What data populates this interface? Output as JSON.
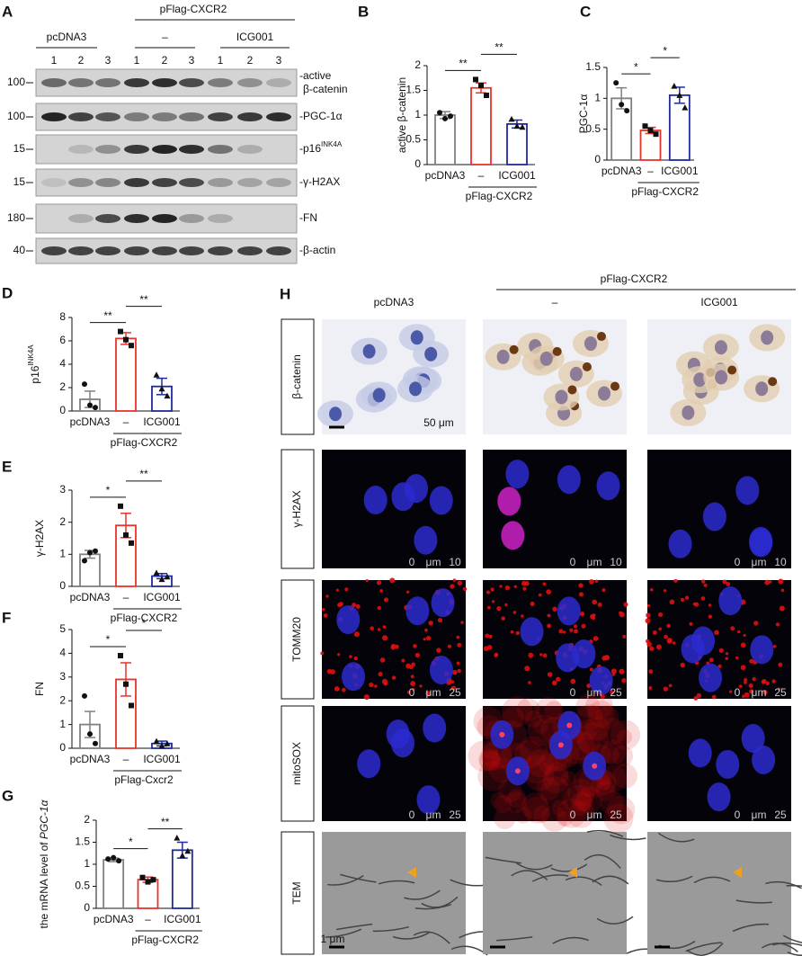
{
  "figure_a": {
    "label": "A",
    "group_header": "pFlag-CXCR2",
    "groups": [
      "pcDNA3",
      "–",
      "ICG001"
    ],
    "lanes": [
      1,
      2,
      3,
      1,
      2,
      3,
      1,
      2,
      3
    ],
    "rows": [
      {
        "marker": 100,
        "label": "-active",
        "label2": "β-catenin"
      },
      {
        "marker": 100,
        "label": "-PGC-1α"
      },
      {
        "marker": 15,
        "label": "-p16",
        "sup": "INK4A"
      },
      {
        "marker": 15,
        "label": "-γ-H2AX"
      },
      {
        "marker": 180,
        "label": "-FN"
      },
      {
        "marker": 40,
        "label": "-β-actin"
      }
    ]
  },
  "chart_data": [
    {
      "type": "bar",
      "panel": "B",
      "ylabel": "active β-catenin",
      "categories": [
        "pcDNA3",
        "–",
        "ICG001"
      ],
      "group_label": "pFlag-CXCR2",
      "colors": [
        "#808080",
        "#e8332a",
        "#1f2a9c"
      ],
      "values": [
        1,
        1.55,
        0.82
      ],
      "errors": [
        0.07,
        0.1,
        0.08
      ],
      "points": [
        [
          1.05,
          0.93,
          0.98
        ],
        [
          1.72,
          1.6,
          1.4
        ],
        [
          0.92,
          0.78,
          0.76
        ]
      ],
      "ylim": [
        0,
        2
      ],
      "yticks": [
        0,
        0.5,
        1,
        1.5,
        2
      ],
      "significance": [
        {
          "from": 0,
          "to": 1,
          "label": "**"
        },
        {
          "from": 1,
          "to": 2,
          "label": "**"
        }
      ]
    },
    {
      "type": "bar",
      "panel": "C",
      "ylabel": "PGC-1α",
      "categories": [
        "pcDNA3",
        "–",
        "ICG001"
      ],
      "group_label": "pFlag-CXCR2",
      "colors": [
        "#808080",
        "#e8332a",
        "#1f2a9c"
      ],
      "values": [
        1,
        0.48,
        1.05
      ],
      "errors": [
        0.17,
        0.05,
        0.13
      ],
      "points": [
        [
          1.25,
          0.9,
          0.8
        ],
        [
          0.55,
          0.48,
          0.42
        ],
        [
          1.2,
          1.05,
          0.85
        ]
      ],
      "ylim": [
        0,
        1.5
      ],
      "yticks": [
        0,
        0.5,
        1,
        1.5
      ],
      "significance": [
        {
          "from": 0,
          "to": 1,
          "label": "*"
        },
        {
          "from": 1,
          "to": 2,
          "label": "*"
        }
      ]
    },
    {
      "type": "bar",
      "panel": "D",
      "ylabel": "p16",
      "ylabel_sup": "INK4A",
      "categories": [
        "pcDNA3",
        "–",
        "ICG001"
      ],
      "group_label": "pFlag-CXCR2",
      "colors": [
        "#808080",
        "#e8332a",
        "#1f2a9c"
      ],
      "values": [
        1,
        6.2,
        2.1
      ],
      "errors": [
        0.7,
        0.5,
        0.7
      ],
      "points": [
        [
          2.3,
          0.5,
          0.3
        ],
        [
          6.8,
          6.1,
          5.6
        ],
        [
          3.1,
          1.9,
          1.3
        ]
      ],
      "ylim": [
        0,
        8
      ],
      "yticks": [
        0,
        2,
        4,
        6,
        8
      ],
      "significance": [
        {
          "from": 0,
          "to": 1,
          "label": "**"
        },
        {
          "from": 1,
          "to": 2,
          "label": "**"
        }
      ]
    },
    {
      "type": "bar",
      "panel": "E",
      "ylabel": "γ-H2AX",
      "categories": [
        "pcDNA3",
        "–",
        "ICG001"
      ],
      "group_label": "pFlag-CXCR2",
      "colors": [
        "#808080",
        "#e8332a",
        "#1f2a9c"
      ],
      "values": [
        1,
        1.9,
        0.32
      ],
      "errors": [
        0.12,
        0.38,
        0.08
      ],
      "points": [
        [
          0.8,
          1.05,
          1.1
        ],
        [
          2.5,
          1.6,
          1.35
        ],
        [
          0.42,
          0.22,
          0.3
        ]
      ],
      "ylim": [
        0,
        3
      ],
      "yticks": [
        0,
        1,
        2,
        3
      ],
      "significance": [
        {
          "from": 0,
          "to": 1,
          "label": "*"
        },
        {
          "from": 1,
          "to": 2,
          "label": "**"
        }
      ]
    },
    {
      "type": "bar",
      "panel": "F",
      "ylabel": "FN",
      "categories": [
        "pcDNA3",
        "–",
        "ICG001"
      ],
      "group_label": "pFlag-Cxcr2",
      "colors": [
        "#808080",
        "#e8332a",
        "#1f2a9c"
      ],
      "values": [
        1,
        2.9,
        0.2
      ],
      "errors": [
        0.55,
        0.7,
        0.1
      ],
      "points": [
        [
          2.2,
          0.6,
          0.2
        ],
        [
          3.9,
          2.7,
          1.8
        ],
        [
          0.3,
          0.1,
          0.2
        ]
      ],
      "ylim": [
        0,
        5
      ],
      "yticks": [
        0,
        1,
        2,
        3,
        4,
        5
      ],
      "significance": [
        {
          "from": 0,
          "to": 1,
          "label": "*"
        },
        {
          "from": 1,
          "to": 2,
          "label": "*"
        }
      ]
    },
    {
      "type": "bar",
      "panel": "G",
      "ylabel": "the mRNA level of ",
      "ylabel_italic": "PGC-1α",
      "categories": [
        "pcDNA3",
        "–",
        "ICG001"
      ],
      "group_label": "pFlag-CXCR2",
      "colors": [
        "#808080",
        "#e8332a",
        "#1f2a9c"
      ],
      "values": [
        1.1,
        0.65,
        1.32
      ],
      "errors": [
        0.04,
        0.06,
        0.18
      ],
      "points": [
        [
          1.12,
          1.15,
          1.08
        ],
        [
          0.7,
          0.6,
          0.65
        ],
        [
          1.6,
          1.2,
          1.3
        ]
      ],
      "ylim": [
        0,
        2
      ],
      "yticks": [
        0,
        0.5,
        1,
        1.5,
        2
      ],
      "significance": [
        {
          "from": 0,
          "to": 1,
          "label": "*"
        },
        {
          "from": 1,
          "to": 2,
          "label": "**"
        }
      ]
    }
  ],
  "figure_h": {
    "label": "H",
    "group_header": "pFlag-CXCR2",
    "columns": [
      "pcDNA3",
      "–",
      "ICG001"
    ],
    "rows": [
      {
        "name": "β-catenin",
        "scale": [
          "50 μm"
        ]
      },
      {
        "name": "γ-H2AX",
        "scale": [
          "0",
          "μm",
          "10"
        ]
      },
      {
        "name": "TOMM20",
        "scale": [
          "0",
          "μm",
          "25"
        ]
      },
      {
        "name": "mitoSOX",
        "scale": [
          "0",
          "μm",
          "25"
        ]
      },
      {
        "name": "TEM",
        "scale": [
          "1 μm"
        ]
      }
    ]
  }
}
